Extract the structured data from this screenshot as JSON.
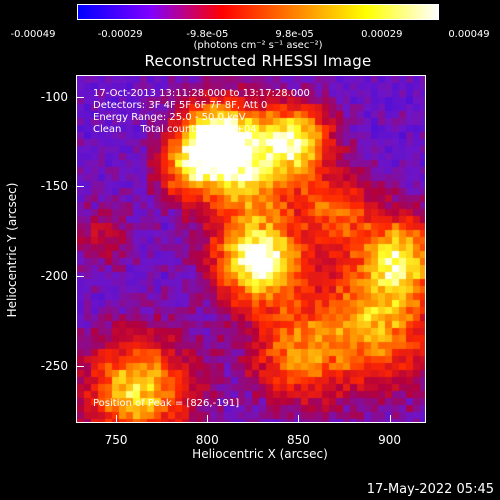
{
  "colorbar": {
    "ticks": [
      "-0.00049",
      "-0.00029",
      "-9.8e-05",
      "9.8e-05",
      "0.00029",
      "0.00049"
    ],
    "unit": "(photons cm⁻² s⁻¹ asec⁻²)"
  },
  "title": "Reconstructed RHESSI Image",
  "annotations": {
    "time_range": "17-Oct-2013 13:11:28.000 to 13:17:28.000",
    "detectors": "Detectors: 3F 4F 5F 6F 7F 8F, Att 0",
    "energy": "Energy Range: 25.0 - 50.0 keV",
    "clean": "Clean      Total counts: 1.67E+04",
    "peak": "Position of Peak = [826,-191]"
  },
  "footer": "17-May-2022 05:45",
  "chart_data": {
    "type": "heatmap",
    "title": "Reconstructed RHESSI Image",
    "xlabel": "Heliocentric X (arcsec)",
    "ylabel": "Heliocentric Y (arcsec)",
    "xlim": [
      728,
      920
    ],
    "ylim": [
      -282,
      -88
    ],
    "xticks": [
      750,
      800,
      850,
      900
    ],
    "yticks": [
      -100,
      -150,
      -200,
      -250
    ],
    "colorbar_range": [
      -0.00049,
      0.00049
    ],
    "colormap_colors": [
      "#0000ff",
      "#7f00ff",
      "#ff0000",
      "#ff8000",
      "#ffff00",
      "#ffffff"
    ],
    "peak": [
      826,
      -191
    ]
  }
}
